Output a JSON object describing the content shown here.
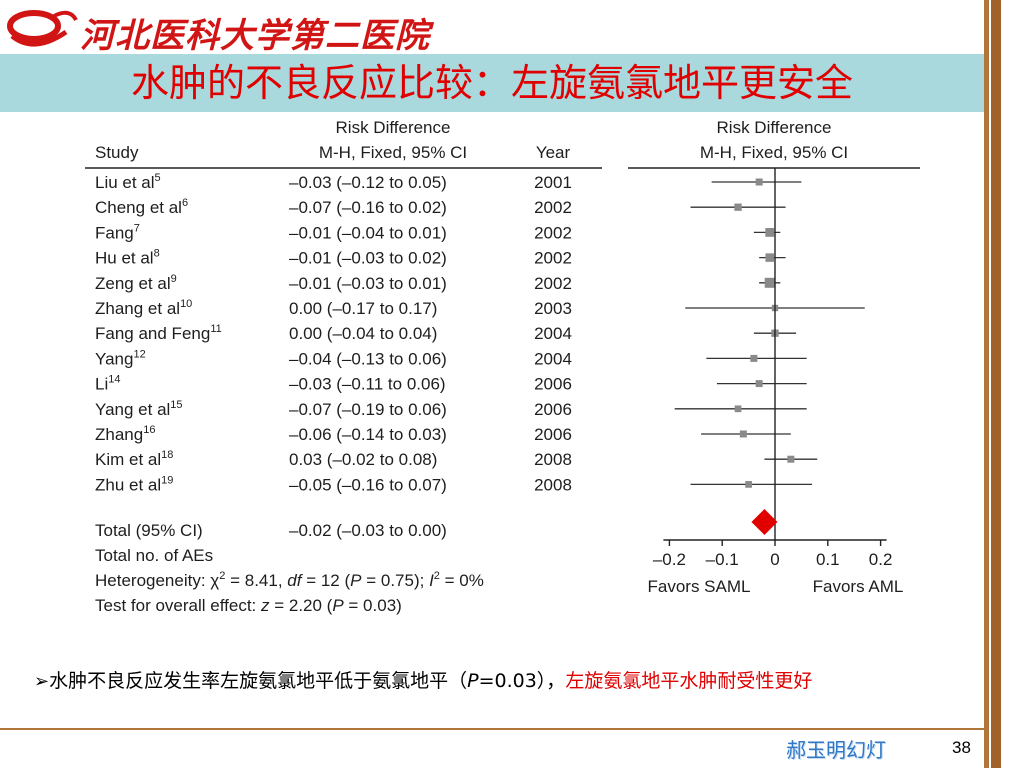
{
  "header": {
    "school_name": "河北医科大学第二医院",
    "slide_title": "水肿的不良反应比较：左旋氨氯地平更安全"
  },
  "colors": {
    "title_red": "#e00000",
    "title_bar": "#a9d8dd",
    "diamond": "#e00000",
    "side_bar": "#a0612b"
  },
  "chart_data": {
    "type": "forest",
    "columns": {
      "study": "Study",
      "rd_header1": "Risk Difference",
      "rd_header2": "M-H, Fixed, 95% CI",
      "year": "Year",
      "plot_header1": "Risk Difference",
      "plot_header2": "M-H, Fixed, 95% CI"
    },
    "studies": [
      {
        "name": "Liu et al",
        "sup": "5",
        "ci_text": "–0.03 (–0.12 to 0.05)",
        "year": "2001",
        "rd": -0.03,
        "lo": -0.12,
        "hi": 0.05
      },
      {
        "name": "Cheng et al",
        "sup": "6",
        "ci_text": "–0.07 (–0.16 to 0.02)",
        "year": "2002",
        "rd": -0.07,
        "lo": -0.16,
        "hi": 0.02
      },
      {
        "name": "Fang",
        "sup": "7",
        "ci_text": "–0.01 (–0.04 to 0.01)",
        "year": "2002",
        "rd": -0.01,
        "lo": -0.04,
        "hi": 0.01
      },
      {
        "name": "Hu et al",
        "sup": "8",
        "ci_text": "–0.01 (–0.03 to 0.02)",
        "year": "2002",
        "rd": -0.01,
        "lo": -0.03,
        "hi": 0.02
      },
      {
        "name": "Zeng et al",
        "sup": "9",
        "ci_text": "–0.01 (–0.03 to 0.01)",
        "year": "2002",
        "rd": -0.01,
        "lo": -0.03,
        "hi": 0.01
      },
      {
        "name": "Zhang et al",
        "sup": "10",
        "ci_text": "0.00 (–0.17 to 0.17)",
        "year": "2003",
        "rd": 0.0,
        "lo": -0.17,
        "hi": 0.17
      },
      {
        "name": "Fang and Feng",
        "sup": "11",
        "ci_text": "0.00 (–0.04 to 0.04)",
        "year": "2004",
        "rd": 0.0,
        "lo": -0.04,
        "hi": 0.04
      },
      {
        "name": "Yang",
        "sup": "12",
        "ci_text": "–0.04 (–0.13 to 0.06)",
        "year": "2004",
        "rd": -0.04,
        "lo": -0.13,
        "hi": 0.06
      },
      {
        "name": "Li",
        "sup": "14",
        "ci_text": "–0.03 (–0.11 to 0.06)",
        "year": "2006",
        "rd": -0.03,
        "lo": -0.11,
        "hi": 0.06
      },
      {
        "name": "Yang et al",
        "sup": "15",
        "ci_text": "–0.07 (–0.19 to 0.06)",
        "year": "2006",
        "rd": -0.07,
        "lo": -0.19,
        "hi": 0.06
      },
      {
        "name": "Zhang",
        "sup": "16",
        "ci_text": "–0.06 (–0.14 to 0.03)",
        "year": "2006",
        "rd": -0.06,
        "lo": -0.14,
        "hi": 0.03
      },
      {
        "name": "Kim et al",
        "sup": "18",
        "ci_text": "0.03 (–0.02 to 0.08)",
        "year": "2008",
        "rd": 0.03,
        "lo": -0.02,
        "hi": 0.08
      },
      {
        "name": "Zhu et al",
        "sup": "19",
        "ci_text": "–0.05 (–0.16 to 0.07)",
        "year": "2008",
        "rd": -0.05,
        "lo": -0.16,
        "hi": 0.07
      }
    ],
    "total": {
      "label": "Total (95% CI)",
      "ci_text": "–0.02 (–0.03 to 0.00)",
      "rd": -0.02,
      "lo": -0.03,
      "hi": 0.0
    },
    "total_aes_label": "Total no. of AEs",
    "heterogeneity": {
      "prefix": "Heterogeneity: ",
      "chi": "χ",
      "chi_sup": "2",
      "chi_val": " = 8.41, ",
      "df_label": "df",
      "df_val": " = 12 (",
      "p_label": "P",
      "p_val": " = 0.75); ",
      "i_label": "I",
      "i_sup": "2",
      "i_val": " = 0%"
    },
    "overall_effect": {
      "prefix": "Test for overall effect: ",
      "z_label": "z",
      "z_val": " = 2.20 (",
      "p_label": "P",
      "p_val": " = 0.03)"
    },
    "xaxis": {
      "ticks": [
        -0.2,
        -0.1,
        0,
        0.1,
        0.2
      ],
      "tick_labels": [
        "–0.2",
        "–0.1",
        "0",
        "0.1",
        "0.2"
      ],
      "xlim": [
        -0.2,
        0.2
      ]
    },
    "favors_left": "Favors SAML",
    "favors_right": "Favors AML"
  },
  "bullet": {
    "arrow": "➢",
    "text1": "水肿不良反应发生率左旋氨氯地平低于氨氯地平（",
    "p_label": "P",
    "text2": "=0.03），",
    "red_text": "左旋氨氯地平水肿耐受性更好"
  },
  "footer": {
    "author": "郝玉明幻灯",
    "page_number": "38"
  }
}
